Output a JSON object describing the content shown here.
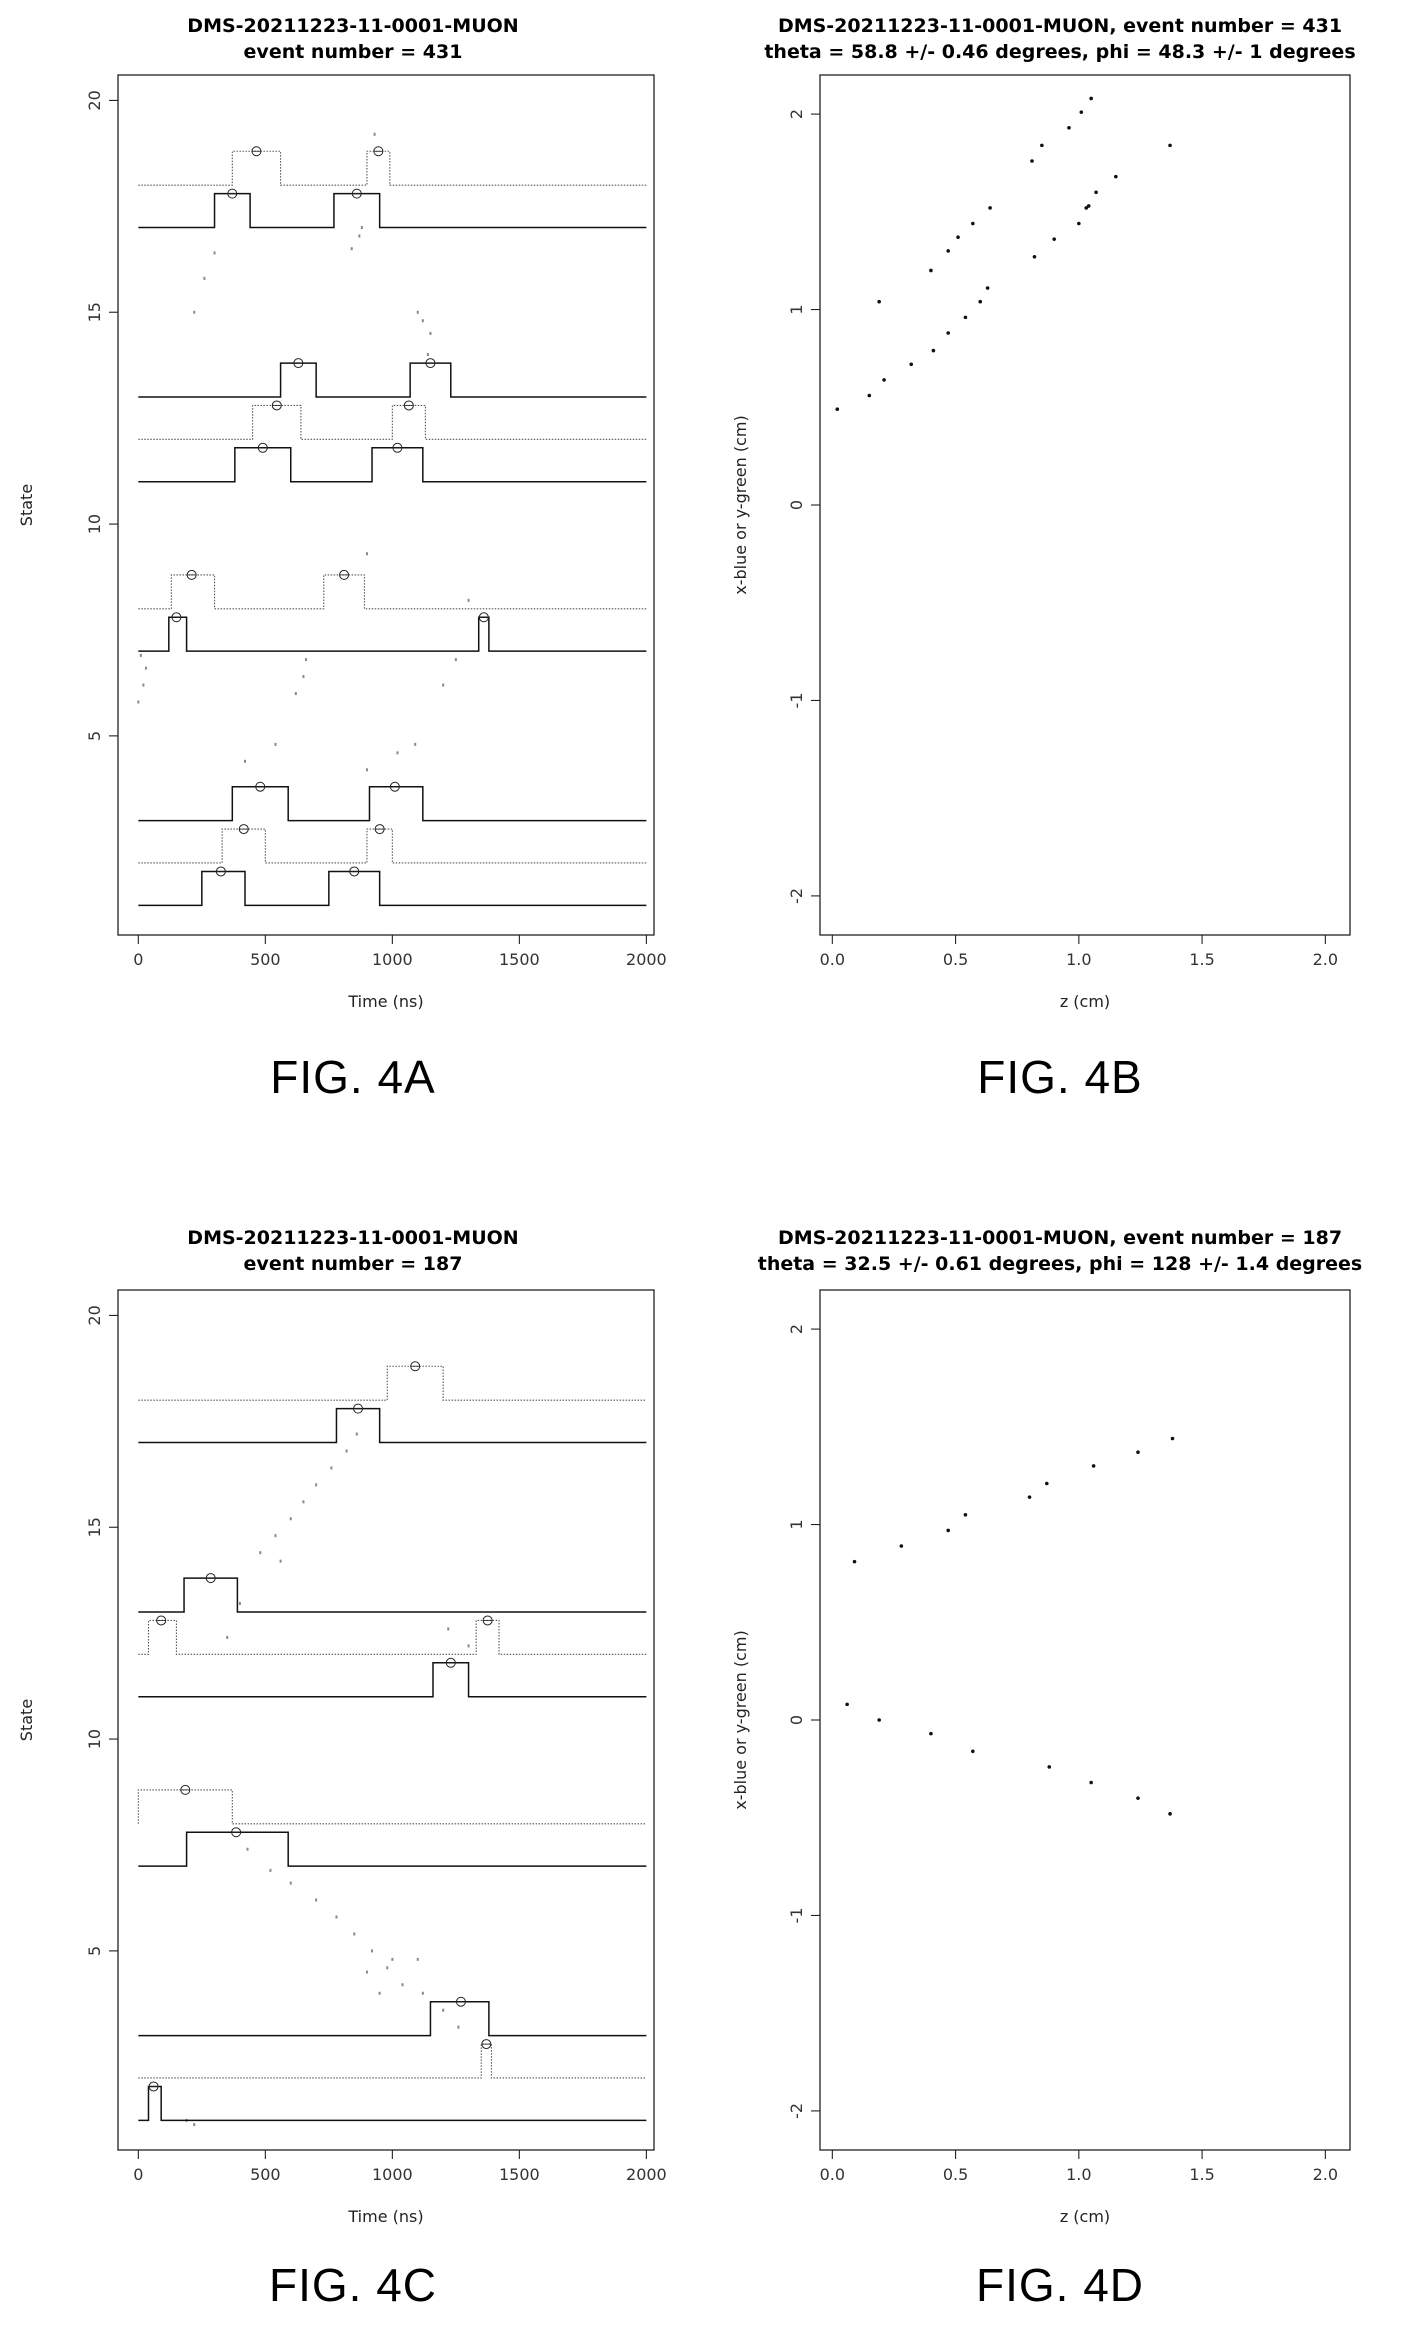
{
  "chart_data": [
    {
      "panel": "A",
      "type": "line",
      "title_line1": "DMS-20211223-11-0001-MUON",
      "title_line2": "event number = 431",
      "xlabel": "Time (ns)",
      "ylabel": "State",
      "figure_label": "FIG. 4A",
      "xlim": [
        -80,
        2030
      ],
      "ylim": [
        0.3,
        20.6
      ],
      "xticks": [
        0,
        500,
        1000,
        1500,
        2000
      ],
      "yticks": [
        5,
        10,
        15,
        20
      ],
      "series": [
        {
          "style": "solid",
          "base": 1,
          "pulses": [
            [
              250,
              420
            ],
            [
              750,
              950
            ]
          ],
          "markers": [
            [
              325,
              1.8
            ],
            [
              850,
              1.8
            ]
          ]
        },
        {
          "style": "dotted",
          "base": 2,
          "pulses": [
            [
              330,
              500
            ],
            [
              900,
              1000
            ]
          ],
          "markers": [
            [
              415,
              2.8
            ],
            [
              950,
              2.8
            ]
          ]
        },
        {
          "style": "solid",
          "base": 3,
          "pulses": [
            [
              370,
              590
            ],
            [
              910,
              1120
            ]
          ],
          "markers": [
            [
              480,
              3.8
            ],
            [
              1010,
              3.8
            ]
          ]
        },
        {
          "style": "solid",
          "base": 7,
          "pulses": [
            [
              120,
              190
            ],
            [
              1340,
              1380
            ]
          ],
          "markers": [
            [
              150,
              7.8
            ],
            [
              1360,
              7.8
            ]
          ]
        },
        {
          "style": "dotted",
          "base": 8,
          "pulses": [
            [
              130,
              300
            ],
            [
              730,
              890
            ]
          ],
          "markers": [
            [
              210,
              8.8
            ],
            [
              810,
              8.8
            ]
          ]
        },
        {
          "style": "solid",
          "base": 11,
          "pulses": [
            [
              380,
              600
            ],
            [
              920,
              1120
            ]
          ],
          "markers": [
            [
              490,
              11.8
            ],
            [
              1020,
              11.8
            ]
          ]
        },
        {
          "style": "dotted",
          "base": 12,
          "pulses": [
            [
              450,
              640
            ],
            [
              1000,
              1130
            ]
          ],
          "markers": [
            [
              545,
              12.8
            ],
            [
              1065,
              12.8
            ]
          ]
        },
        {
          "style": "solid",
          "base": 13,
          "pulses": [
            [
              560,
              700
            ],
            [
              1070,
              1230
            ]
          ],
          "markers": [
            [
              630,
              13.8
            ],
            [
              1150,
              13.8
            ]
          ]
        },
        {
          "style": "solid",
          "base": 17,
          "pulses": [
            [
              300,
              440
            ],
            [
              770,
              950
            ]
          ],
          "markers": [
            [
              370,
              17.8
            ],
            [
              860,
              17.8
            ]
          ]
        },
        {
          "style": "dotted",
          "base": 18,
          "pulses": [
            [
              370,
              560
            ],
            [
              900,
              990
            ]
          ],
          "markers": [
            [
              465,
              18.8
            ],
            [
              945,
              18.8
            ]
          ]
        }
      ],
      "scatter_points": [
        [
          0,
          5.8
        ],
        [
          20,
          6.2
        ],
        [
          30,
          6.6
        ],
        [
          10,
          6.9
        ],
        [
          220,
          15.0
        ],
        [
          260,
          15.8
        ],
        [
          300,
          16.4
        ],
        [
          620,
          6.0
        ],
        [
          650,
          6.4
        ],
        [
          660,
          6.8
        ],
        [
          840,
          16.5
        ],
        [
          870,
          16.8
        ],
        [
          880,
          17.0
        ],
        [
          900,
          9.3
        ],
        [
          1120,
          14.8
        ],
        [
          1150,
          14.5
        ],
        [
          1200,
          6.2
        ],
        [
          1250,
          6.8
        ],
        [
          1300,
          8.2
        ],
        [
          1100,
          15.0
        ],
        [
          1140,
          14.0
        ],
        [
          930,
          19.2
        ],
        [
          540,
          4.8
        ],
        [
          420,
          4.4
        ],
        [
          1020,
          4.6
        ],
        [
          1090,
          4.8
        ],
        [
          900,
          4.2
        ]
      ]
    },
    {
      "panel": "B",
      "type": "scatter",
      "title_line1": "DMS-20211223-11-0001-MUON, event number = 431",
      "title_line2": "theta = 58.8 +/- 0.46 degrees, phi = 48.3 +/- 1 degrees",
      "xlabel": "z (cm)",
      "ylabel": "x-blue or y-green (cm)",
      "figure_label": "FIG. 4B",
      "xlim": [
        -0.05,
        2.1
      ],
      "ylim": [
        -2.2,
        2.2
      ],
      "xticks": [
        "0.0",
        "0.5",
        "1.0",
        "1.5",
        "2.0"
      ],
      "yticks": [
        "-2",
        "-1",
        "0",
        "1",
        "2"
      ],
      "points": [
        [
          0.02,
          0.49
        ],
        [
          0.15,
          0.56
        ],
        [
          0.21,
          0.64
        ],
        [
          0.32,
          0.72
        ],
        [
          0.41,
          0.79
        ],
        [
          0.47,
          0.88
        ],
        [
          0.54,
          0.96
        ],
        [
          0.6,
          1.04
        ],
        [
          0.63,
          1.11
        ],
        [
          0.82,
          1.27
        ],
        [
          0.9,
          1.36
        ],
        [
          1.0,
          1.44
        ],
        [
          1.03,
          1.52
        ],
        [
          1.04,
          1.53
        ],
        [
          1.07,
          1.6
        ],
        [
          1.15,
          1.68
        ],
        [
          1.37,
          1.84
        ],
        [
          0.19,
          1.04
        ],
        [
          0.4,
          1.2
        ],
        [
          0.47,
          1.3
        ],
        [
          0.51,
          1.37
        ],
        [
          0.57,
          1.44
        ],
        [
          0.64,
          1.52
        ],
        [
          0.81,
          1.76
        ],
        [
          0.85,
          1.84
        ],
        [
          0.96,
          1.93
        ],
        [
          1.01,
          2.01
        ],
        [
          1.05,
          2.08
        ]
      ]
    },
    {
      "panel": "C",
      "type": "line",
      "title_line1": "DMS-20211223-11-0001-MUON",
      "title_line2": "event number = 187",
      "xlabel": "Time (ns)",
      "ylabel": "State",
      "figure_label": "FIG. 4C",
      "xlim": [
        -80,
        2030
      ],
      "ylim": [
        0.3,
        20.6
      ],
      "xticks": [
        0,
        500,
        1000,
        1500,
        2000
      ],
      "yticks": [
        5,
        10,
        15,
        20
      ],
      "series": [
        {
          "style": "solid",
          "base": 1,
          "pulses": [
            [
              40,
              90
            ]
          ],
          "markers": [
            [
              60,
              1.8
            ]
          ]
        },
        {
          "style": "dotted",
          "base": 2,
          "pulses": [
            [
              1350,
              1390
            ]
          ],
          "markers": [
            [
              1370,
              2.8
            ]
          ]
        },
        {
          "style": "solid",
          "base": 3,
          "pulses": [
            [
              1150,
              1380
            ]
          ],
          "markers": [
            [
              1270,
              3.8
            ]
          ]
        },
        {
          "style": "solid",
          "base": 7,
          "pulses": [
            [
              190,
              590
            ]
          ],
          "markers": [
            [
              385,
              7.8
            ]
          ]
        },
        {
          "style": "dotted",
          "base": 8,
          "pulses": [
            [
              0,
              370
            ]
          ],
          "markers": [
            [
              185,
              8.8
            ]
          ]
        },
        {
          "style": "solid",
          "base": 11,
          "pulses": [
            [
              1160,
              1300
            ]
          ],
          "markers": [
            [
              1230,
              11.8
            ]
          ]
        },
        {
          "style": "dotted",
          "base": 12,
          "pulses": [
            [
              40,
              150
            ],
            [
              1330,
              1420
            ]
          ],
          "markers": [
            [
              90,
              12.8
            ],
            [
              1375,
              12.8
            ]
          ]
        },
        {
          "style": "solid",
          "base": 13,
          "pulses": [
            [
              180,
              390
            ]
          ],
          "markers": [
            [
              285,
              13.8
            ]
          ]
        },
        {
          "style": "solid",
          "base": 17,
          "pulses": [
            [
              780,
              950
            ]
          ],
          "markers": [
            [
              865,
              17.8
            ]
          ]
        },
        {
          "style": "dotted",
          "base": 18,
          "pulses": [
            [
              980,
              1200
            ]
          ],
          "markers": [
            [
              1090,
              18.8
            ]
          ]
        }
      ],
      "scatter_points": [
        [
          190,
          1.0
        ],
        [
          220,
          0.9
        ],
        [
          430,
          7.4
        ],
        [
          520,
          6.9
        ],
        [
          600,
          6.6
        ],
        [
          700,
          6.2
        ],
        [
          780,
          5.8
        ],
        [
          850,
          5.4
        ],
        [
          920,
          5.0
        ],
        [
          980,
          4.6
        ],
        [
          1040,
          4.2
        ],
        [
          1120,
          4.0
        ],
        [
          1200,
          3.6
        ],
        [
          1260,
          3.2
        ],
        [
          600,
          15.2
        ],
        [
          650,
          15.6
        ],
        [
          700,
          16.0
        ],
        [
          760,
          16.4
        ],
        [
          820,
          16.8
        ],
        [
          860,
          17.2
        ],
        [
          480,
          14.4
        ],
        [
          540,
          14.8
        ],
        [
          560,
          14.2
        ],
        [
          1220,
          12.6
        ],
        [
          1300,
          12.2
        ],
        [
          1100,
          4.8
        ],
        [
          900,
          4.5
        ],
        [
          1000,
          4.8
        ],
        [
          950,
          4.0
        ],
        [
          400,
          13.2
        ],
        [
          350,
          12.4
        ]
      ]
    },
    {
      "panel": "D",
      "type": "scatter",
      "title_line1": "DMS-20211223-11-0001-MUON, event number = 187",
      "title_line2": "theta = 32.5 +/- 0.61 degrees, phi = 128 +/- 1.4 degrees",
      "xlabel": "z (cm)",
      "ylabel": "x-blue or y-green (cm)",
      "figure_label": "FIG. 4D",
      "xlim": [
        -0.05,
        2.1
      ],
      "ylim": [
        -2.2,
        2.2
      ],
      "xticks": [
        "0.0",
        "0.5",
        "1.0",
        "1.5",
        "2.0"
      ],
      "yticks": [
        "-2",
        "-1",
        "0",
        "1",
        "2"
      ],
      "points": [
        [
          0.09,
          0.81
        ],
        [
          0.28,
          0.89
        ],
        [
          0.47,
          0.97
        ],
        [
          0.54,
          1.05
        ],
        [
          0.8,
          1.14
        ],
        [
          0.87,
          1.21
        ],
        [
          1.06,
          1.3
        ],
        [
          1.24,
          1.37
        ],
        [
          1.38,
          1.44
        ],
        [
          0.06,
          0.08
        ],
        [
          0.19,
          0.0
        ],
        [
          0.4,
          -0.07
        ],
        [
          0.57,
          -0.16
        ],
        [
          0.88,
          -0.24
        ],
        [
          1.05,
          -0.32
        ],
        [
          1.24,
          -0.4
        ],
        [
          1.37,
          -0.48
        ]
      ]
    }
  ]
}
